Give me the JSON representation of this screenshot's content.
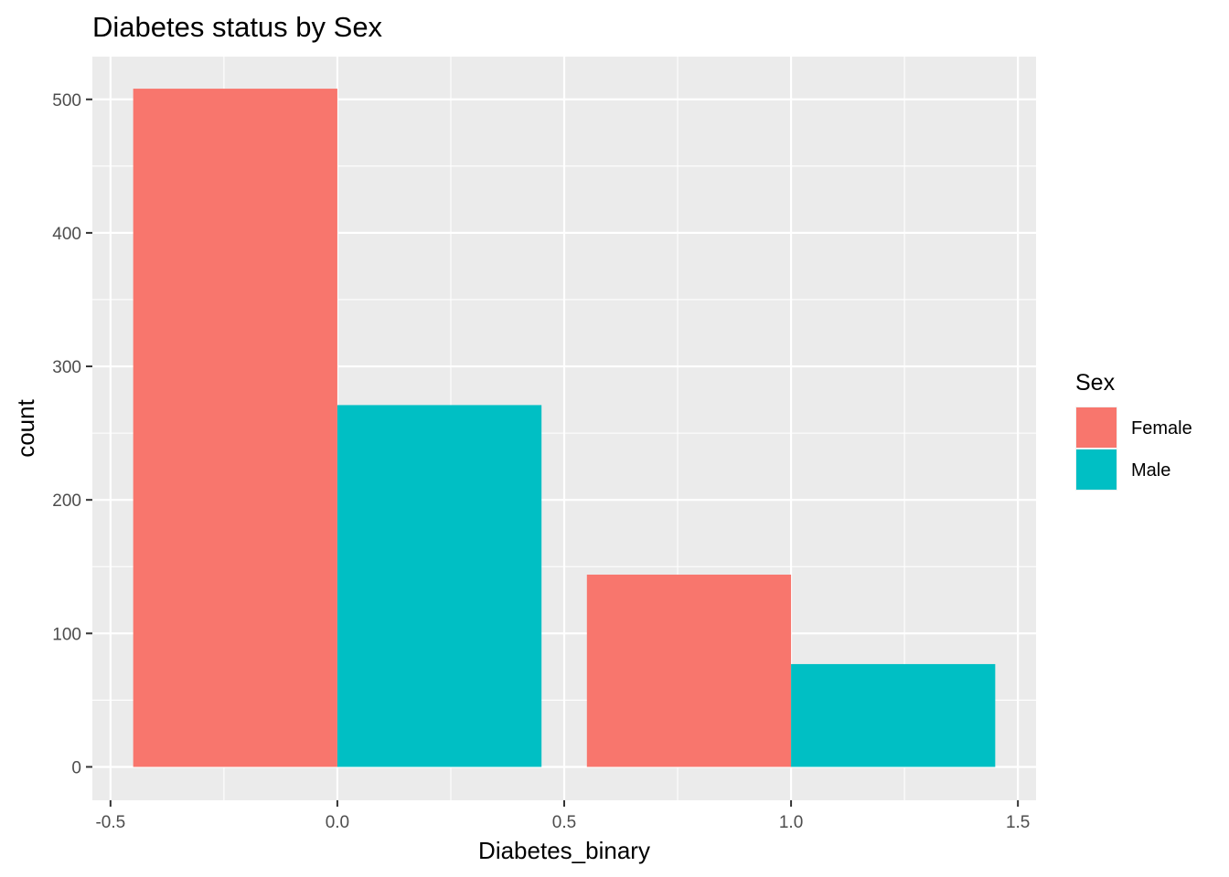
{
  "chart_data": {
    "type": "bar",
    "title": "Diabetes status by Sex",
    "xlabel": "Diabetes_binary",
    "ylabel": "count",
    "xlim": [
      -0.54,
      1.54
    ],
    "ylim": [
      -25,
      532
    ],
    "x_ticks": [
      -0.5,
      0.0,
      0.5,
      1.0,
      1.5
    ],
    "x_tick_labels": [
      "-0.5",
      "0.0",
      "0.5",
      "1.0",
      "1.5"
    ],
    "y_ticks": [
      0,
      100,
      200,
      300,
      400,
      500
    ],
    "y_tick_labels": [
      "0",
      "100",
      "200",
      "300",
      "400",
      "500"
    ],
    "grid": true,
    "legend": {
      "title": "Sex",
      "position": "right"
    },
    "series": [
      {
        "name": "Female",
        "color": "#F8766D",
        "bars": [
          {
            "x0": -0.45,
            "x1": 0.0,
            "value": 508
          },
          {
            "x0": 0.55,
            "x1": 1.0,
            "value": 144
          }
        ]
      },
      {
        "name": "Male",
        "color": "#00BFC4",
        "bars": [
          {
            "x0": 0.0,
            "x1": 0.45,
            "value": 271
          },
          {
            "x0": 1.0,
            "x1": 1.45,
            "value": 77
          }
        ]
      }
    ]
  }
}
